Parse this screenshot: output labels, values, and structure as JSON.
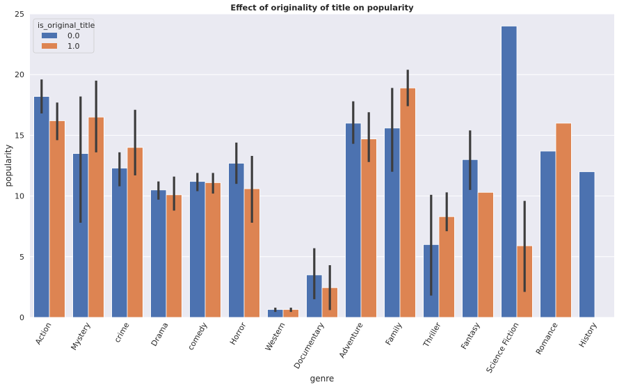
{
  "chart_data": {
    "type": "bar",
    "title": "Effect of originality of title on popularity",
    "xlabel": "genre",
    "ylabel": "popularity",
    "ylim": [
      0,
      25
    ],
    "yticks": [
      0,
      5,
      10,
      15,
      20,
      25
    ],
    "grid": true,
    "legend": {
      "title": "is_original_title",
      "position": "top-left"
    },
    "categories": [
      "Action",
      "Mystery",
      "crime",
      "Drama",
      "comedy",
      "Horror",
      "Western",
      "Documentary",
      "Adventure",
      "Family",
      "Thriller",
      "Fantasy",
      "Science Fiction",
      "Romance",
      "History"
    ],
    "series": [
      {
        "name": "0.0",
        "color": "#4c72b0",
        "values": [
          18.2,
          13.5,
          12.3,
          10.5,
          11.2,
          12.7,
          0.65,
          3.5,
          16.0,
          15.6,
          6.0,
          13.0,
          24.0,
          13.7,
          12.0
        ],
        "err_low": [
          16.8,
          7.8,
          10.8,
          9.7,
          10.4,
          11.0,
          0.45,
          1.5,
          14.3,
          12.0,
          1.8,
          10.5,
          null,
          null,
          null
        ],
        "err_high": [
          19.6,
          18.2,
          13.6,
          11.2,
          11.9,
          14.4,
          0.8,
          5.7,
          17.8,
          18.9,
          10.1,
          15.4,
          null,
          null,
          null
        ]
      },
      {
        "name": "1.0",
        "color": "#dd8452",
        "values": [
          16.2,
          16.5,
          14.0,
          10.1,
          11.1,
          10.6,
          0.65,
          2.45,
          14.7,
          18.9,
          8.3,
          10.3,
          5.9,
          16.0,
          null
        ],
        "err_low": [
          14.6,
          13.6,
          11.7,
          8.8,
          10.2,
          7.8,
          0.45,
          0.6,
          12.8,
          17.4,
          7.1,
          null,
          2.1,
          null,
          null
        ],
        "err_high": [
          17.7,
          19.5,
          17.1,
          11.6,
          11.9,
          13.3,
          0.8,
          4.3,
          16.9,
          20.4,
          10.3,
          null,
          9.6,
          null,
          null
        ]
      }
    ]
  }
}
